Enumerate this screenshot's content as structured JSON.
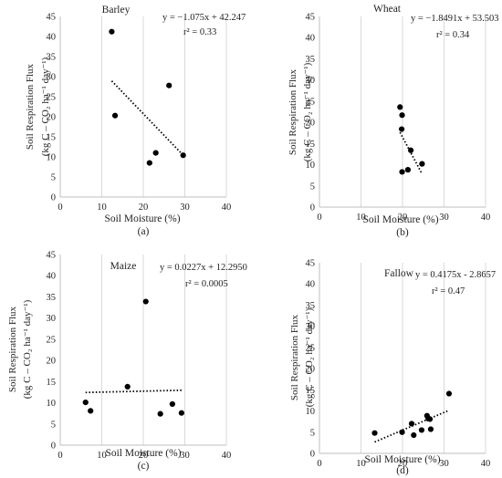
{
  "chart_data": [
    {
      "type": "scatter",
      "panel_label": "(a)",
      "title": "Barley",
      "equation": "y = −1.075x + 42.247",
      "r2_label": "r² = 0.33",
      "xlabel": "Soil Moisture (%)",
      "ylabel_line1": "Soil Respiration Flux",
      "ylabel_line2": "(kg C – CO₂ ha⁻¹ day⁻¹)",
      "xlim": [
        0,
        40
      ],
      "ylim": [
        0,
        45
      ],
      "x_ticks": [
        0,
        10,
        20,
        30,
        40
      ],
      "y_ticks": [
        0,
        5,
        10,
        15,
        20,
        25,
        30,
        35,
        40,
        45
      ],
      "points": [
        {
          "x": 12.4,
          "y": 41.2
        },
        {
          "x": 13.2,
          "y": 20.3
        },
        {
          "x": 21.5,
          "y": 8.5
        },
        {
          "x": 23.0,
          "y": 11.0
        },
        {
          "x": 26.2,
          "y": 27.8
        },
        {
          "x": 29.6,
          "y": 10.4
        }
      ],
      "trendline": {
        "slope": -1.075,
        "intercept": 42.247,
        "x_range": [
          12.4,
          29.6
        ]
      }
    },
    {
      "type": "scatter",
      "panel_label": "(b)",
      "title": "Wheat",
      "equation": "y = −1.8491x + 53.503",
      "r2_label": "r² = 0.34",
      "xlabel": "Soil Moisture (%)",
      "ylabel_line1": "Soil Respiration Flux",
      "ylabel_line2": "(kg C – CO₂ ha⁻¹ day⁻¹)",
      "xlim": [
        0,
        40
      ],
      "ylim": [
        0,
        45
      ],
      "x_ticks": [
        0,
        10,
        20,
        30,
        40
      ],
      "y_ticks": [
        0,
        5,
        10,
        15,
        20,
        25,
        30,
        35,
        40,
        45
      ],
      "points": [
        {
          "x": 19.4,
          "y": 23.6
        },
        {
          "x": 19.9,
          "y": 21.7
        },
        {
          "x": 19.8,
          "y": 18.4
        },
        {
          "x": 19.9,
          "y": 8.3
        },
        {
          "x": 21.3,
          "y": 8.8
        },
        {
          "x": 22.0,
          "y": 13.4
        },
        {
          "x": 24.7,
          "y": 10.2
        }
      ],
      "trendline": {
        "slope": -1.8491,
        "intercept": 53.503,
        "x_range": [
          19.4,
          24.7
        ]
      }
    },
    {
      "type": "scatter",
      "panel_label": "(c)",
      "title": "Maize",
      "equation": "y = 0.0227x + 12.2950",
      "r2_label": "r² = 0.0005",
      "xlabel": "Soil Moisture (%)",
      "ylabel_line1": "Soil Respiration Flux",
      "ylabel_line2": "(kg C – CO₂ ha⁻¹ day⁻¹)",
      "xlim": [
        0,
        40
      ],
      "ylim": [
        0,
        45
      ],
      "x_ticks": [
        0,
        10,
        20,
        30,
        40
      ],
      "y_ticks": [
        0,
        5,
        10,
        15,
        20,
        25,
        30,
        35,
        40,
        45
      ],
      "points": [
        {
          "x": 6.1,
          "y": 10.1
        },
        {
          "x": 7.3,
          "y": 8.1
        },
        {
          "x": 16.2,
          "y": 13.8
        },
        {
          "x": 20.6,
          "y": 33.9
        },
        {
          "x": 24.1,
          "y": 7.4
        },
        {
          "x": 27.0,
          "y": 9.7
        },
        {
          "x": 29.2,
          "y": 7.6
        }
      ],
      "trendline": {
        "slope": 0.0227,
        "intercept": 12.295,
        "x_range": [
          6.1,
          29.2
        ]
      }
    },
    {
      "type": "scatter",
      "panel_label": "(d)",
      "title": "Fallow",
      "equation": "y = 0.4175x - 2.8657",
      "r2_label": "r² = 0.47",
      "xlabel": "Soil Moisture (%)",
      "ylabel_line1": "Soil Respiration Flux",
      "ylabel_line2": "(kg C – CO₂ ha⁻¹ day⁻¹)",
      "xlim": [
        0,
        40
      ],
      "ylim": [
        0,
        45
      ],
      "x_ticks": [
        0,
        10,
        20,
        30,
        40
      ],
      "y_ticks": [
        0,
        5,
        10,
        15,
        20,
        25,
        30,
        35,
        40,
        45
      ],
      "points": [
        {
          "x": 13.3,
          "y": 4.8
        },
        {
          "x": 19.9,
          "y": 5.0
        },
        {
          "x": 22.2,
          "y": 7.0
        },
        {
          "x": 22.7,
          "y": 4.3
        },
        {
          "x": 24.6,
          "y": 5.5
        },
        {
          "x": 25.9,
          "y": 8.9
        },
        {
          "x": 26.2,
          "y": 8.2
        },
        {
          "x": 26.6,
          "y": 8.1
        },
        {
          "x": 26.8,
          "y": 5.7
        },
        {
          "x": 31.2,
          "y": 14.1
        }
      ],
      "trendline": {
        "slope": 0.4175,
        "intercept": -2.8657,
        "x_range": [
          13.3,
          31.2
        ]
      }
    }
  ]
}
